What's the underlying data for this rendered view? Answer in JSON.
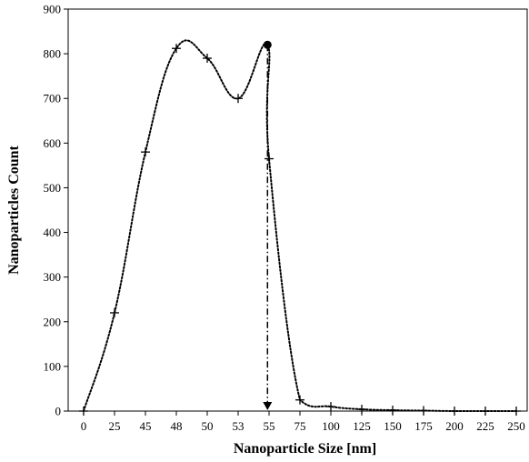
{
  "chart_data": {
    "type": "line",
    "title": "",
    "xlabel": "Nanoparticle Size [nm]",
    "ylabel": "Nanoparticles Count",
    "x_axis_kind": "categorical",
    "categories": [
      "0",
      "25",
      "45",
      "48",
      "50",
      "53",
      "55",
      "75",
      "100",
      "125",
      "150",
      "175",
      "200",
      "225",
      "250"
    ],
    "series": [
      {
        "values": [
          0,
          220,
          580,
          812,
          790,
          700,
          565,
          25,
          10,
          4,
          2,
          1,
          0,
          0,
          0
        ],
        "marker": "plus",
        "line_style": "dotted",
        "color": "#000000"
      }
    ],
    "ylim": [
      0,
      900
    ],
    "yticks": [
      0,
      100,
      200,
      300,
      400,
      500,
      600,
      700,
      800,
      900
    ],
    "grid": false,
    "legend": "none",
    "annotations": [
      {
        "type": "peak-marker",
        "x_category_position": 5.95,
        "y": 820,
        "style": "filled-circle with dash-dot vertical arrow down to x-axis"
      }
    ]
  }
}
